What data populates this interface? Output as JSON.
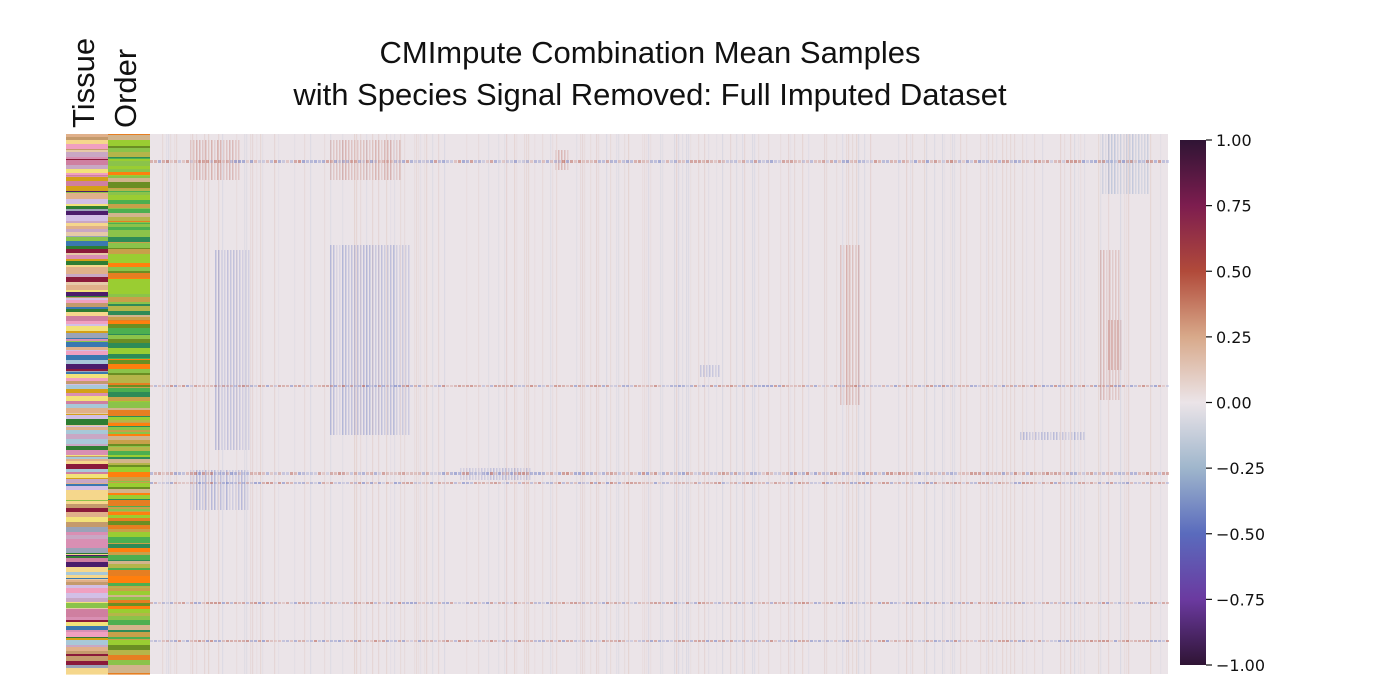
{
  "chart_data": {
    "type": "heatmap",
    "title_lines": [
      "CMImpute Combination Mean Samples",
      "with Species Signal Removed: Full Imputed Dataset"
    ],
    "row_annotations": [
      "Tissue",
      "Order"
    ],
    "colorbar": {
      "ticks": [
        "1.00",
        "0.75",
        "0.50",
        "0.25",
        "0.00",
        "−0.25",
        "−0.50",
        "−0.75",
        "−1.00"
      ],
      "range": [
        -1.0,
        1.0
      ],
      "colormap": "twilight_shifted",
      "stops": [
        {
          "value": 1.0,
          "color": "#2f1434"
        },
        {
          "value": 0.75,
          "color": "#7d1d4f"
        },
        {
          "value": 0.5,
          "color": "#b14a3a"
        },
        {
          "value": 0.25,
          "color": "#d8a98a"
        },
        {
          "value": 0.0,
          "color": "#ebe4e8"
        },
        {
          "value": -0.25,
          "color": "#9fb6cc"
        },
        {
          "value": -0.5,
          "color": "#5a6bbd"
        },
        {
          "value": -0.75,
          "color": "#6b3aa0"
        },
        {
          "value": -1.0,
          "color": "#2f1434"
        }
      ]
    },
    "grid": false,
    "legend": "colorbar-right"
  }
}
